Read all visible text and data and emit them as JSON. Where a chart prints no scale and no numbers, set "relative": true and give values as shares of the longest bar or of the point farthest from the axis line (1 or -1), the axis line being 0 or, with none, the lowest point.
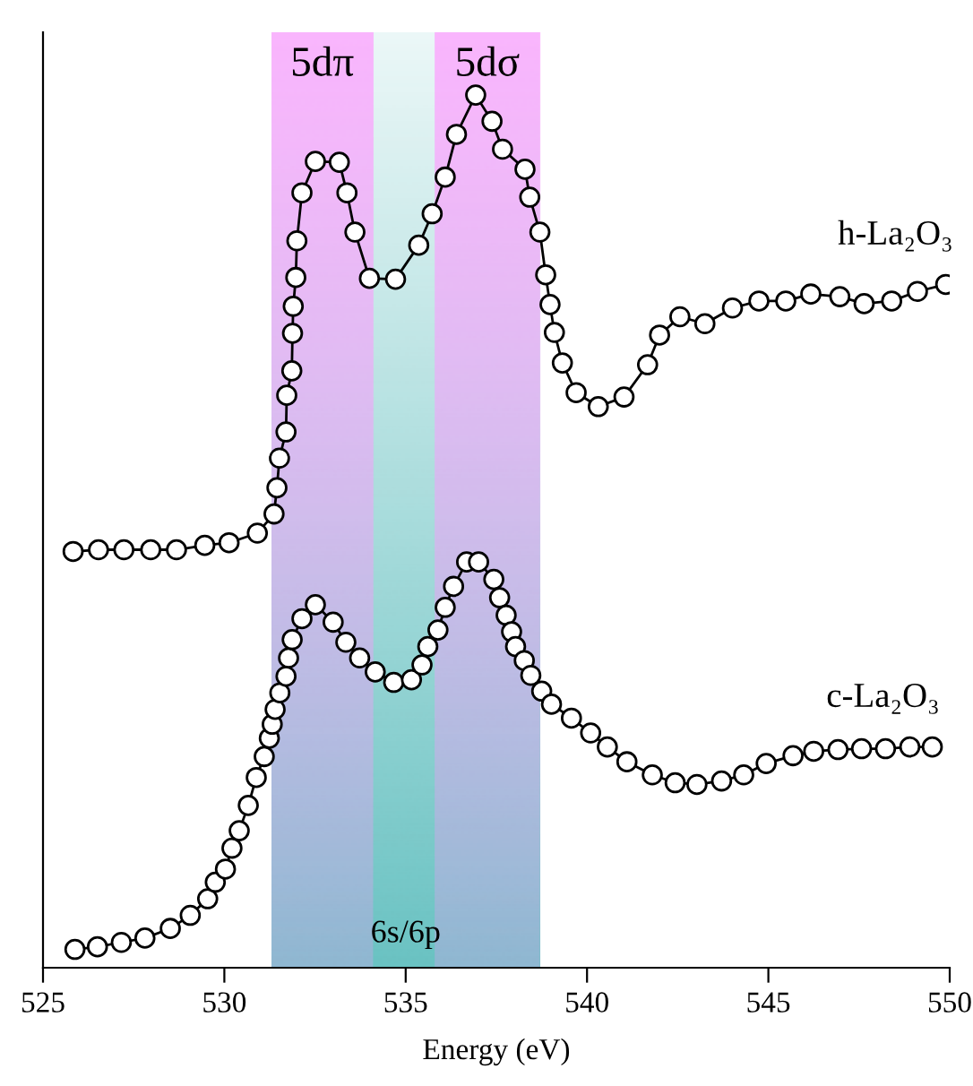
{
  "chart_data": {
    "type": "line",
    "relative": true,
    "xlabel": "Energy (eV)",
    "xlim": [
      525,
      550
    ],
    "xticks": [
      525,
      530,
      535,
      540,
      545,
      550
    ],
    "tick_labels": "x",
    "marker": "circle",
    "line_style": "solid",
    "legend": false,
    "grid": false,
    "series": [
      {
        "name": "h-La₂O₃",
        "color": "#000000",
        "x": [
          525.83,
          526.53,
          527.23,
          527.97,
          528.68,
          529.46,
          530.13,
          530.91,
          531.37,
          531.45,
          531.52,
          531.7,
          531.72,
          531.86,
          531.88,
          531.9,
          531.97,
          532.0,
          532.14,
          532.51,
          533.17,
          533.38,
          533.6,
          534.0,
          534.72,
          535.36,
          535.73,
          536.09,
          536.4,
          536.93,
          537.38,
          537.67,
          538.29,
          538.42,
          538.7,
          538.86,
          538.98,
          539.1,
          539.32,
          539.7,
          540.31,
          541.02,
          541.67,
          542.0,
          542.56,
          543.25,
          544.01,
          544.74,
          545.48,
          546.17,
          546.97,
          547.64,
          548.4,
          549.11,
          549.89
        ],
        "values": [
          0.477,
          0.479,
          0.479,
          0.479,
          0.479,
          0.484,
          0.487,
          0.498,
          0.52,
          0.55,
          0.584,
          0.614,
          0.656,
          0.684,
          0.727,
          0.758,
          0.791,
          0.833,
          0.888,
          0.924,
          0.923,
          0.888,
          0.843,
          0.79,
          0.789,
          0.828,
          0.864,
          0.906,
          0.955,
          1.0,
          0.97,
          0.938,
          0.915,
          0.883,
          0.843,
          0.794,
          0.76,
          0.728,
          0.693,
          0.659,
          0.643,
          0.654,
          0.691,
          0.725,
          0.746,
          0.738,
          0.756,
          0.764,
          0.764,
          0.772,
          0.769,
          0.761,
          0.764,
          0.775,
          0.783
        ]
      },
      {
        "name": "c-La₂O₃",
        "color": "#000000",
        "x": [
          525.88,
          526.5,
          527.16,
          527.81,
          528.51,
          529.06,
          529.54,
          529.75,
          530.03,
          530.21,
          530.41,
          530.66,
          530.88,
          531.1,
          531.24,
          531.32,
          531.4,
          531.53,
          531.7,
          531.77,
          531.87,
          532.14,
          532.51,
          533.0,
          533.35,
          533.73,
          534.16,
          534.67,
          535.16,
          535.45,
          535.61,
          535.89,
          536.09,
          536.32,
          536.68,
          537.01,
          537.43,
          537.59,
          537.77,
          537.92,
          538.03,
          538.27,
          538.45,
          538.75,
          539.02,
          539.57,
          540.1,
          540.56,
          541.1,
          541.8,
          542.43,
          543.03,
          543.71,
          544.32,
          544.94,
          545.68,
          546.25,
          546.92,
          547.57,
          548.23,
          548.9,
          549.52
        ],
        "values": [
          0.021,
          0.024,
          0.029,
          0.034,
          0.045,
          0.06,
          0.079,
          0.098,
          0.113,
          0.137,
          0.157,
          0.186,
          0.218,
          0.242,
          0.263,
          0.279,
          0.296,
          0.315,
          0.334,
          0.355,
          0.376,
          0.4,
          0.416,
          0.396,
          0.373,
          0.355,
          0.339,
          0.327,
          0.33,
          0.347,
          0.368,
          0.387,
          0.413,
          0.437,
          0.465,
          0.465,
          0.445,
          0.424,
          0.404,
          0.385,
          0.368,
          0.352,
          0.335,
          0.317,
          0.302,
          0.286,
          0.269,
          0.253,
          0.236,
          0.221,
          0.212,
          0.21,
          0.214,
          0.221,
          0.234,
          0.243,
          0.248,
          0.25,
          0.251,
          0.251,
          0.253,
          0.253
        ]
      }
    ],
    "bands": [
      {
        "axis": "x",
        "from": 531.3,
        "to": 538.7,
        "label": "6s/6p",
        "color": "#5bbcbc"
      },
      {
        "axis": "x",
        "from": 531.3,
        "to": 534.1,
        "label": "5dπ",
        "color": "#ff99ff"
      },
      {
        "axis": "x",
        "from": 535.8,
        "to": 538.7,
        "label": "5dσ",
        "color": "#ff99ff"
      }
    ]
  }
}
